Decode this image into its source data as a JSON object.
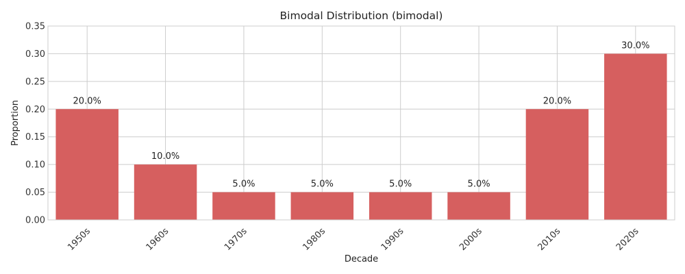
{
  "chart_data": {
    "type": "bar",
    "title": "Bimodal Distribution (bimodal)",
    "xlabel": "Decade",
    "ylabel": "Proportion",
    "categories": [
      "1950s",
      "1960s",
      "1970s",
      "1980s",
      "1990s",
      "2000s",
      "2010s",
      "2020s"
    ],
    "values": [
      0.2,
      0.1,
      0.05,
      0.05,
      0.05,
      0.05,
      0.2,
      0.3
    ],
    "data_labels": [
      "20.0%",
      "10.0%",
      "5.0%",
      "5.0%",
      "5.0%",
      "5.0%",
      "20.0%",
      "30.0%"
    ],
    "ylim": [
      0,
      0.35
    ],
    "yticks": [
      0.0,
      0.05,
      0.1,
      0.15,
      0.2,
      0.25,
      0.3,
      0.35
    ],
    "ytick_labels": [
      "0.00",
      "0.05",
      "0.10",
      "0.15",
      "0.20",
      "0.25",
      "0.30",
      "0.35"
    ],
    "grid": true,
    "bar_color": "#d65f5f",
    "grid_color": "#cccccc"
  }
}
